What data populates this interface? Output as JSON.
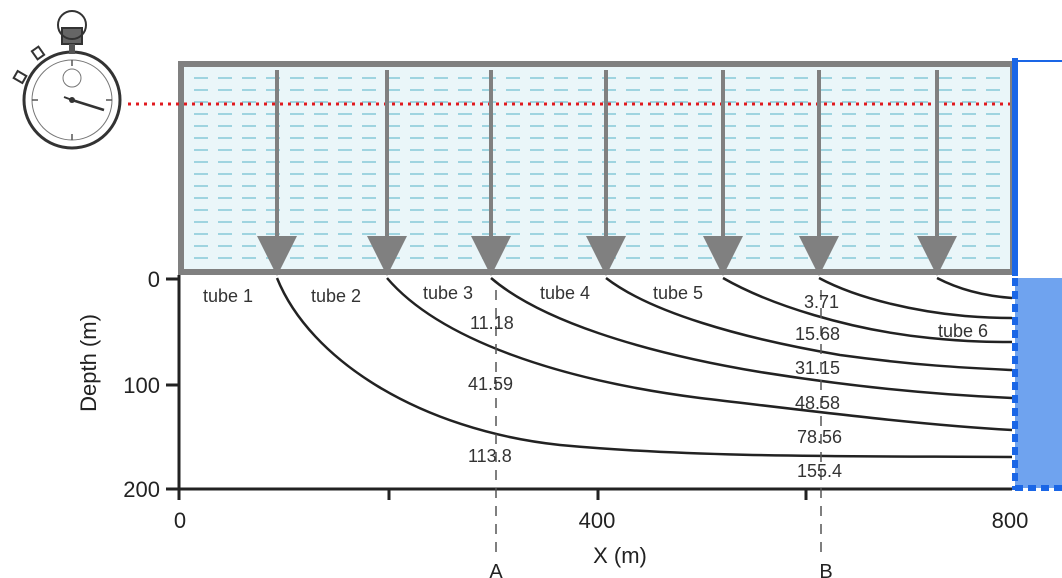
{
  "diagram": {
    "y_axis_label": "Depth (m)",
    "x_axis_label": "X (m)",
    "y_ticks": [
      "0",
      "100",
      "200"
    ],
    "x_ticks": [
      "0",
      "400",
      "800"
    ],
    "section_markers": [
      "A",
      "B"
    ],
    "tube_labels": [
      "tube 1",
      "tube 2",
      "tube 3",
      "tube 4",
      "tube 5",
      "tube 6"
    ],
    "section_a_values": [
      "11.18",
      "41.59",
      "113.8"
    ],
    "section_b_values": [
      "3.71",
      "15.68",
      "31.15",
      "48.58",
      "78.56",
      "155.4"
    ],
    "stopwatch_icon": "stopwatch-icon",
    "colors": {
      "water_fill": "#eaf6f9",
      "water_dash": "#9fd4e0",
      "reservoir_border": "#808080",
      "arrow": "#808080",
      "time_line": "#e0191f",
      "right_bar": "#1a66e6",
      "right_fill": "#6fa3ef",
      "curve": "#222222"
    }
  }
}
